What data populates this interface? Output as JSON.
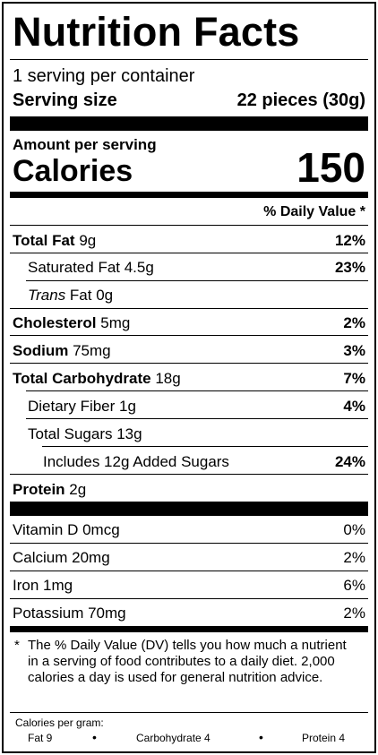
{
  "title": "Nutrition Facts",
  "servings_per_container": "1 serving per container",
  "serving_size_label": "Serving size",
  "serving_size_value": "22 pieces (30g)",
  "amount_per_serving": "Amount per serving",
  "calories_label": "Calories",
  "calories_value": "150",
  "daily_value_header": "% Daily Value *",
  "nutrients": {
    "total_fat": {
      "name": "Total Fat",
      "amount": "9g",
      "dv": "12%"
    },
    "saturated_fat": {
      "name": "Saturated Fat 4.5g",
      "dv": "23%"
    },
    "trans_fat": {
      "name_italic": "Trans",
      "name_rest": " Fat 0g"
    },
    "cholesterol": {
      "name": "Cholesterol",
      "amount": "5mg",
      "dv": "2%"
    },
    "sodium": {
      "name": "Sodium",
      "amount": "75mg",
      "dv": "3%"
    },
    "total_carbohydrate": {
      "name": "Total Carbohydrate",
      "amount": "18g",
      "dv": "7%"
    },
    "dietary_fiber": {
      "name": "Dietary Fiber 1g",
      "dv": "4%"
    },
    "total_sugars": {
      "name": "Total Sugars 13g"
    },
    "added_sugars": {
      "name": "Includes 12g Added Sugars",
      "dv": "24%"
    },
    "protein": {
      "name": "Protein",
      "amount": "2g"
    }
  },
  "vitamins": {
    "vitamin_d": {
      "name": "Vitamin D 0mcg",
      "dv": "0%"
    },
    "calcium": {
      "name": "Calcium 20mg",
      "dv": "2%"
    },
    "iron": {
      "name": "Iron 1mg",
      "dv": "6%"
    },
    "potassium": {
      "name": "Potassium 70mg",
      "dv": "2%"
    }
  },
  "footnote": {
    "star": "*",
    "text": "The % Daily Value (DV) tells you how much a nutrient in a serving of food contributes to a daily diet. 2,000 calories a day is used for general nutrition advice."
  },
  "calories_per_gram": {
    "label": "Calories per gram:",
    "fat": "Fat 9",
    "carbohydrate": "Carbohydrate 4",
    "protein": "Protein 4",
    "bullet": "•"
  }
}
